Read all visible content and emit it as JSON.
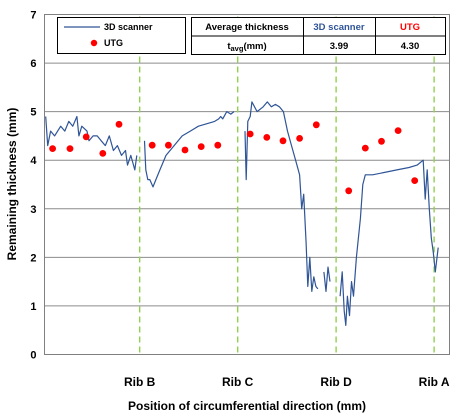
{
  "chart_data": {
    "type": "line",
    "xlabel": "Position of circumferential direction (mm)",
    "ylabel": "Remaining thickness (mm)",
    "ylim": [
      0,
      7
    ],
    "yticks": [
      "0",
      "1",
      "2",
      "3",
      "4",
      "5",
      "6",
      "7"
    ],
    "grid": true,
    "legend_position": "top-left",
    "x_range": [
      0,
      100
    ],
    "x_markers": [
      {
        "label": "Rib B",
        "x": 23.5
      },
      {
        "label": "Rib C",
        "x": 47.7
      },
      {
        "label": "Rib D",
        "x": 72.0
      },
      {
        "label": "Rib A",
        "x": 96.2
      }
    ],
    "series": [
      {
        "name": "3D scanner",
        "type": "line",
        "color": "#2f5597",
        "points": [
          [
            0.3,
            4.9
          ],
          [
            0.8,
            4.3
          ],
          [
            1.5,
            4.6
          ],
          [
            2.5,
            4.5
          ],
          [
            4,
            4.7
          ],
          [
            5,
            4.6
          ],
          [
            6,
            4.8
          ],
          [
            7,
            4.7
          ],
          [
            8,
            4.9
          ],
          [
            8.5,
            4.5
          ],
          [
            9.2,
            4.7
          ],
          [
            10.5,
            4.6
          ],
          [
            11,
            4.4
          ],
          [
            12,
            4.5
          ],
          [
            13,
            4.5
          ],
          [
            14,
            4.4
          ],
          [
            15,
            4.3
          ],
          [
            16,
            4.5
          ],
          [
            17,
            4.2
          ],
          [
            18,
            4.3
          ],
          [
            19,
            4.1
          ],
          [
            20,
            4.2
          ],
          [
            20.5,
            3.9
          ],
          [
            21.3,
            4.1
          ],
          [
            22.3,
            3.8
          ],
          [
            22.8,
            4.1
          ],
          [
            null,
            null
          ],
          [
            24.7,
            4.4
          ],
          [
            25,
            3.8
          ],
          [
            25.5,
            3.6
          ],
          [
            26,
            3.6
          ],
          [
            26.8,
            3.45
          ],
          [
            27.5,
            3.6
          ],
          [
            28.5,
            3.8
          ],
          [
            30,
            4.1
          ],
          [
            32,
            4.3
          ],
          [
            34,
            4.5
          ],
          [
            36,
            4.6
          ],
          [
            38,
            4.7
          ],
          [
            40,
            4.75
          ],
          [
            42,
            4.8
          ],
          [
            43,
            4.85
          ],
          [
            43.5,
            4.9
          ],
          [
            44,
            4.85
          ],
          [
            45,
            5.0
          ],
          [
            46,
            4.95
          ],
          [
            46.8,
            5.0
          ],
          [
            null,
            null
          ],
          [
            49.5,
            4.6
          ],
          [
            49.8,
            3.6
          ],
          [
            50.2,
            4.8
          ],
          [
            50.8,
            4.9
          ],
          [
            51.2,
            5.2
          ],
          [
            52.5,
            5.0
          ],
          [
            54,
            5.1
          ],
          [
            55,
            5.2
          ],
          [
            56,
            5.1
          ],
          [
            57,
            5.15
          ],
          [
            58,
            5.1
          ],
          [
            59,
            5.0
          ],
          [
            60,
            4.6
          ],
          [
            61,
            4.3
          ],
          [
            62,
            4.0
          ],
          [
            63,
            3.7
          ],
          [
            63.5,
            3.0
          ],
          [
            64,
            3.3
          ],
          [
            64.6,
            2.3
          ],
          [
            65,
            1.4
          ],
          [
            65.5,
            2.0
          ],
          [
            66,
            1.3
          ],
          [
            66.5,
            1.6
          ],
          [
            67,
            1.4
          ],
          [
            67.5,
            1.35
          ],
          [
            null,
            null
          ],
          [
            69,
            1.7
          ],
          [
            69.5,
            1.3
          ],
          [
            70,
            1.8
          ],
          [
            70.5,
            1.5
          ],
          [
            null,
            null
          ],
          [
            73,
            1.2
          ],
          [
            73.5,
            1.7
          ],
          [
            74,
            0.9
          ],
          [
            74.4,
            0.6
          ],
          [
            74.8,
            1.2
          ],
          [
            75.3,
            0.8
          ],
          [
            75.8,
            1.5
          ],
          [
            76.3,
            1.2
          ],
          [
            77,
            2.0
          ],
          [
            78,
            2.8
          ],
          [
            78.6,
            3.5
          ],
          [
            79.2,
            3.7
          ],
          [
            81,
            3.7
          ],
          [
            84,
            3.75
          ],
          [
            87,
            3.8
          ],
          [
            90,
            3.85
          ],
          [
            92,
            3.9
          ],
          [
            93.5,
            4.0
          ],
          [
            94,
            3.2
          ],
          [
            94.5,
            3.8
          ],
          [
            95,
            3.0
          ],
          [
            95.5,
            2.4
          ],
          [
            96,
            2.1
          ],
          [
            96.5,
            1.7
          ],
          [
            97.2,
            2.2
          ]
        ]
      },
      {
        "name": "UTG",
        "type": "scatter",
        "color": "#ff0000",
        "points": [
          [
            2,
            4.24
          ],
          [
            6.3,
            4.24
          ],
          [
            10.3,
            4.48
          ],
          [
            14.4,
            4.14
          ],
          [
            18.4,
            4.74
          ],
          [
            26.6,
            4.31
          ],
          [
            30.6,
            4.31
          ],
          [
            34.7,
            4.21
          ],
          [
            38.7,
            4.28
          ],
          [
            42.8,
            4.31
          ],
          [
            50.8,
            4.54
          ],
          [
            54.9,
            4.47
          ],
          [
            58.9,
            4.4
          ],
          [
            63,
            4.45
          ],
          [
            67.1,
            4.73
          ],
          [
            75.1,
            3.37
          ],
          [
            79.2,
            4.25
          ],
          [
            83.2,
            4.39
          ],
          [
            87.3,
            4.61
          ],
          [
            91.4,
            3.58
          ]
        ]
      }
    ]
  },
  "legend": {
    "items": [
      {
        "label": "3D scanner",
        "color": "#2f5597"
      },
      {
        "label": "UTG",
        "color": "#ff0000"
      }
    ]
  },
  "summary_table": {
    "header_label": "Average thickness",
    "row_label": "t",
    "row_label_sub": "avg",
    "row_label_unit": "(mm)",
    "col1_header": "3D scanner",
    "col2_header": "UTG",
    "col1_value": "3.99",
    "col2_value": "4.30",
    "col1_color": "#2f5597",
    "col2_color": "#ff0000"
  }
}
